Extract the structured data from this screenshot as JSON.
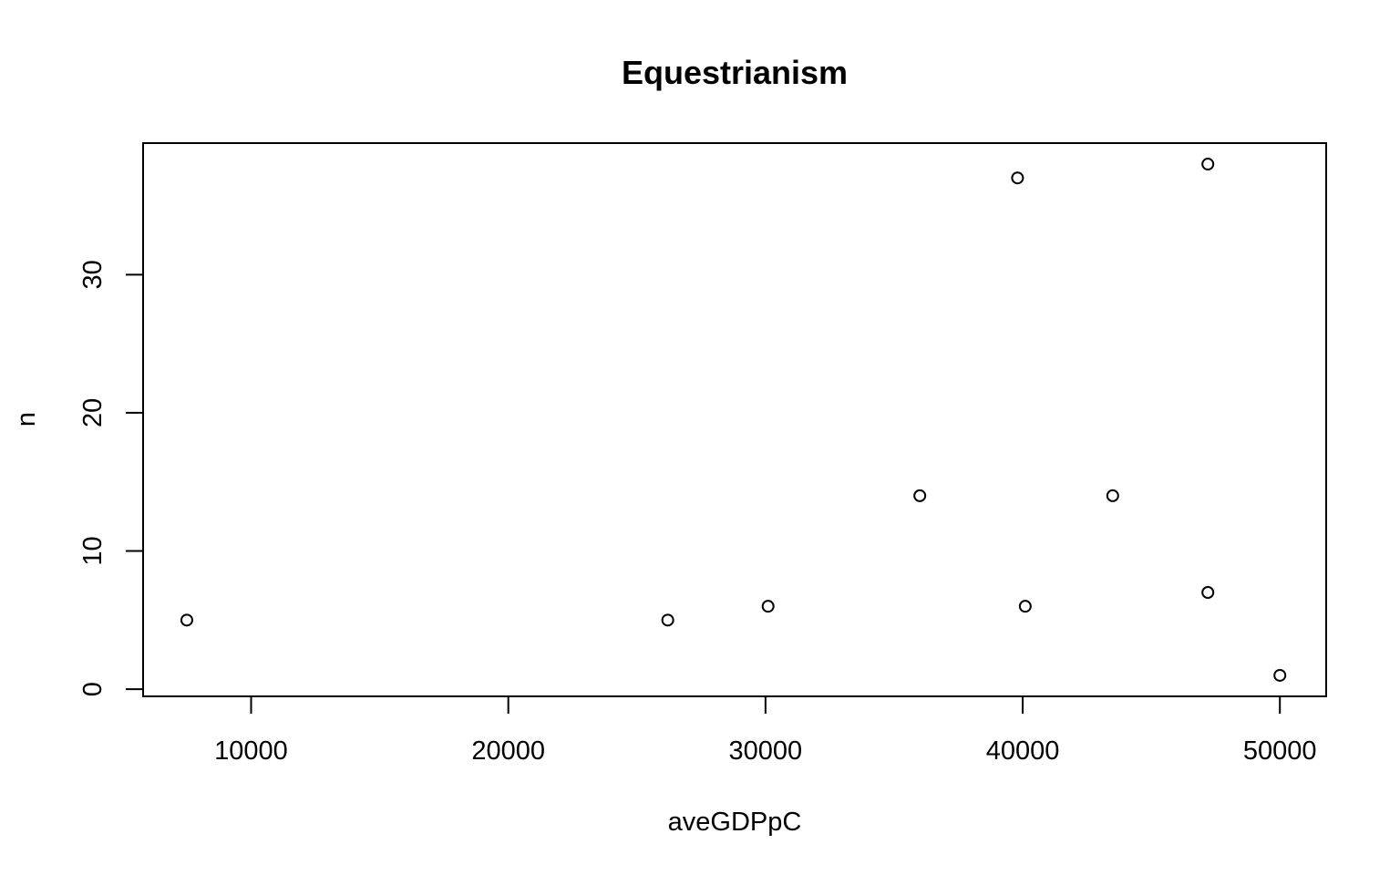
{
  "chart_data": {
    "type": "scatter",
    "title": "Equestrianism",
    "xlabel": "aveGDPpC",
    "ylabel": "n",
    "xlim": [
      5800,
      51800
    ],
    "ylim": [
      -0.52,
      39.52
    ],
    "x_ticks": [
      10000,
      20000,
      30000,
      40000,
      50000
    ],
    "y_ticks": [
      0,
      10,
      20,
      30
    ],
    "x": [
      7500,
      26200,
      30100,
      36000,
      39800,
      40100,
      43500,
      47200,
      47200,
      50000
    ],
    "y": [
      5,
      5,
      6,
      14,
      37,
      6,
      14,
      38,
      7,
      1
    ],
    "marker": "open-circle",
    "grid": false,
    "legend": "none"
  }
}
